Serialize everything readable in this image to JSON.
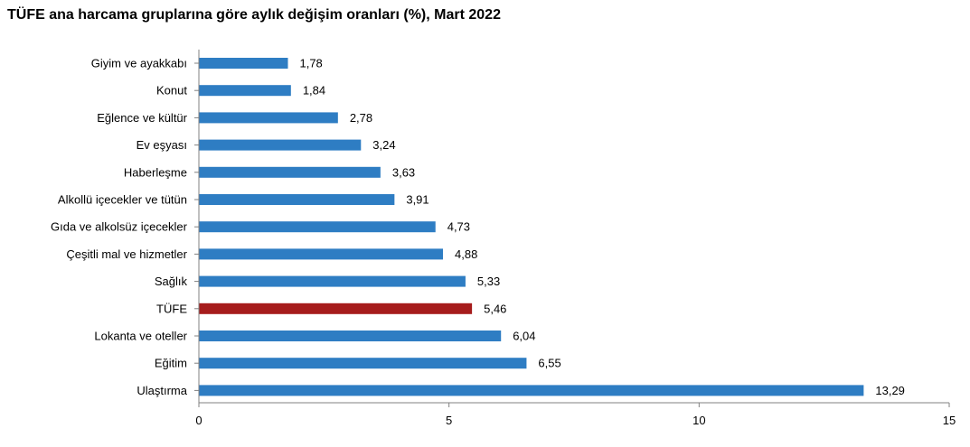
{
  "chart_data": {
    "type": "bar",
    "orientation": "horizontal",
    "title": "TÜFE ana harcama gruplarına göre aylık değişim oranları (%), Mart 2022",
    "categories": [
      "Giyim ve ayakkabı",
      "Konut",
      "Eğlence ve kültür",
      "Ev eşyası",
      "Haberleşme",
      "Alkollü içecekler ve tütün",
      "Gıda ve alkolsüz içecekler",
      "Çeşitli mal ve hizmetler",
      "Sağlık",
      "TÜFE",
      "Lokanta ve oteller",
      "Eğitim",
      "Ulaştırma"
    ],
    "values": [
      1.78,
      1.84,
      2.78,
      3.24,
      3.63,
      3.91,
      4.73,
      4.88,
      5.33,
      5.46,
      6.04,
      6.55,
      13.29
    ],
    "value_labels": [
      "1,78",
      "1,84",
      "2,78",
      "3,24",
      "3,63",
      "3,91",
      "4,73",
      "4,88",
      "5,33",
      "5,46",
      "6,04",
      "6,55",
      "13,29"
    ],
    "highlight_category": "TÜFE",
    "xlim": [
      0,
      15
    ],
    "x_ticks": [
      0,
      5,
      10,
      15
    ],
    "x_tick_labels": [
      "0",
      "5",
      "10",
      "15"
    ],
    "grid": false,
    "legend": "none",
    "colors": {
      "bar": "#2e7dc3",
      "highlight_bar": "#a61c1c",
      "axis": "#808080"
    }
  }
}
